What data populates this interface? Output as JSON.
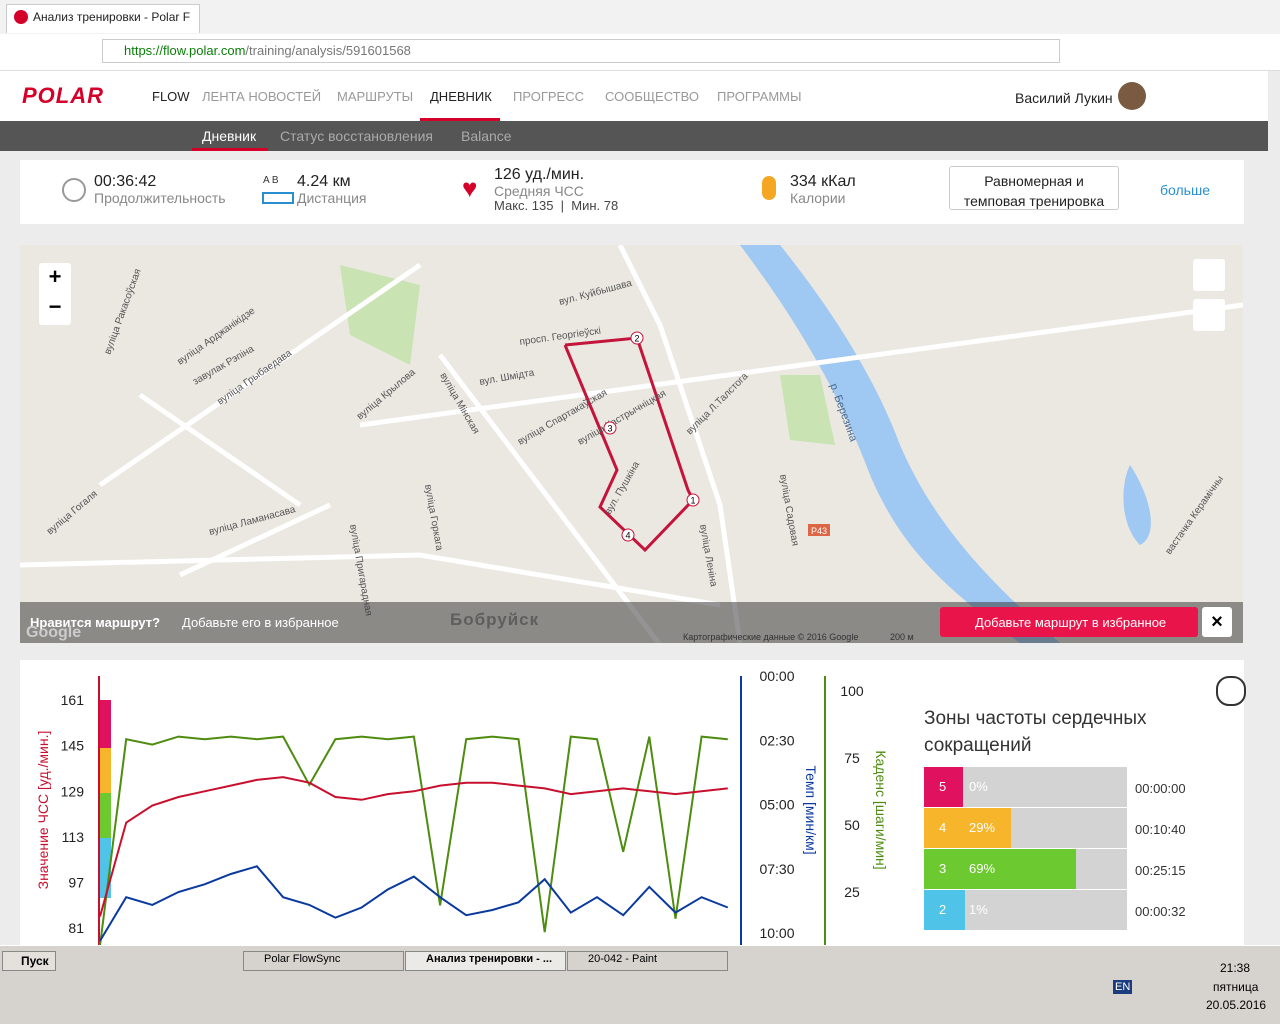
{
  "browser": {
    "tab_title": "Анализ тренировки - Polar F",
    "url_host": "https://flow.polar.com",
    "url_path": "/training/analysis/591601568"
  },
  "nav": {
    "logo": "POLAR",
    "items": [
      "FLOW",
      "ЛЕНТА НОВОСТЕЙ",
      "МАРШРУТЫ",
      "ДНЕВНИК",
      "ПРОГРЕСС",
      "СООБЩЕСТВО",
      "ПРОГРАММЫ"
    ],
    "active": 3,
    "user": "Василий Лукин"
  },
  "subnav": {
    "items": [
      "Дневник",
      "Статус восстановления",
      "Balance"
    ],
    "active": 0
  },
  "summary": {
    "duration": "00:36:42",
    "duration_label": "Продолжительность",
    "ab": "A   B",
    "distance": "4.24 км",
    "distance_label": "Дистанция",
    "hr": "126 уд./мин.",
    "hr_label": "Средняя ЧСС",
    "hr_range": "Макс. 135  |  Мин. 78",
    "calories": "334 кКал",
    "calories_label": "Калории",
    "training_type": "Равномерная и темповая тренировка",
    "more": "больше"
  },
  "map": {
    "labels": [
      "вуліца Ракасоўская",
      "вуліца Арджанікідзе",
      "завулак Рэпіна",
      "вуліца Грыбаедава",
      "вуліца Крылова",
      "вуліца Мінская",
      "вул. Шмідта",
      "просп. Георгіеўскі",
      "вул. Куйбышава",
      "вуліца Спартакаўская",
      "вуліца Кастрычніцкая",
      "вул. Пушкіна",
      "вуліца Л.Талстога",
      "вуліца Леніна",
      "вуліца Садовая",
      "вуліца Гогаля",
      "вуліца Ламанасава",
      "вуліца Пригарадная",
      "вуліца Горкага",
      "вастачка Керамічны"
    ],
    "city": "Бобруйск",
    "river": "р. Березина",
    "road": "Р43",
    "route_markers": [
      "1",
      "2",
      "3",
      "4"
    ],
    "prompt_q": "Нравится маршрут?",
    "prompt": "Добавьте его в избранное",
    "add_button": "Добавьте маршрут в избранное",
    "attribution": "Картографические данные © 2016 Google",
    "scale": "200 м",
    "google": "Google"
  },
  "chart_data": {
    "type": "line",
    "ylabel": "Значение ЧСС [уд./мин.]",
    "y2label": "Темп [мин/км]",
    "y3label": "Каденс [шаги/мин]",
    "x": [
      0,
      1.5,
      3,
      4.5,
      6,
      7.5,
      9,
      10.5,
      12,
      13.5,
      15,
      16.5,
      18,
      19.5,
      21,
      22.5,
      24,
      25.5,
      27,
      28.5,
      30,
      31.5,
      33,
      34.5,
      36
    ],
    "xlim": [
      0,
      36.7
    ],
    "ylim": [
      75,
      169.5
    ],
    "yticks": [
      161,
      145,
      129,
      113,
      97,
      81
    ],
    "y2lim": [
      0,
      10.46
    ],
    "y2reverse": true,
    "y2ticks": [
      {
        "value": 0,
        "label": "00:00"
      },
      {
        "value": 2.5,
        "label": "02:30"
      },
      {
        "value": 5,
        "label": "05:00"
      },
      {
        "value": 7.5,
        "label": "07:30"
      },
      {
        "value": 10,
        "label": "10:00"
      }
    ],
    "y3lim": [
      5.2,
      105.6
    ],
    "y3ticks": [
      100,
      75,
      50,
      25
    ],
    "series": [
      {
        "name": "ЧСС",
        "color": "#c8102e",
        "axis": "y",
        "values": [
          85,
          118,
          124,
          127,
          129,
          131,
          133,
          134,
          132,
          127,
          126,
          128,
          129,
          131,
          132,
          132,
          131,
          130,
          128,
          129,
          130,
          129,
          128,
          129,
          130
        ]
      },
      {
        "name": "Темп",
        "color": "#0a3a9e",
        "axis": "y2",
        "values": [
          10.3,
          8.6,
          8.9,
          8.4,
          8.1,
          7.7,
          7.4,
          8.6,
          8.9,
          9.4,
          9.0,
          8.3,
          7.8,
          8.6,
          9.3,
          9.1,
          8.8,
          7.9,
          9.2,
          8.6,
          9.3,
          8.2,
          9.2,
          8.6,
          9.0
        ]
      },
      {
        "name": "Каденс",
        "color": "#4e8c10",
        "axis": "y3",
        "values": [
          5,
          82,
          80,
          83,
          82,
          83,
          82,
          83,
          65,
          82,
          83,
          82,
          83,
          20,
          82,
          83,
          82,
          10,
          83,
          82,
          40,
          83,
          15,
          83,
          82
        ]
      }
    ]
  },
  "zones": {
    "title": "Зоны частоты сердечных сокращений",
    "categories": [
      "5",
      "4",
      "3",
      "2"
    ],
    "values": [
      0,
      29,
      69,
      1
    ],
    "value_labels": [
      "0%",
      "29%",
      "69%",
      "1%"
    ],
    "times": [
      "00:00:00",
      "00:10:40",
      "00:25:15",
      "00:00:32"
    ],
    "colors": [
      "#e0115f",
      "#f7b52b",
      "#6cc92f",
      "#4fc3e8"
    ]
  },
  "taskbar": {
    "start": "Пуск",
    "windows": [
      "Polar FlowSync",
      "Анализ тренировки - ...",
      "20-042 - Paint"
    ],
    "lang": "EN",
    "time": "21:38",
    "day": "пятница",
    "date": "20.05.2016"
  }
}
